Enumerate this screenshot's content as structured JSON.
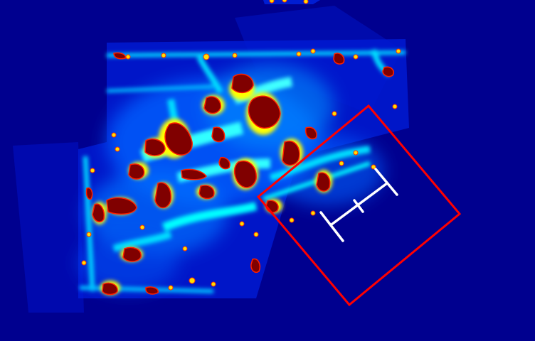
{
  "map": {
    "background_color": "#00008f",
    "colormap": "jet",
    "colormap_stops": [
      "#00008f",
      "#0000ff",
      "#00a0ff",
      "#00ffff",
      "#ffff00",
      "#ff0000",
      "#800000"
    ],
    "overlay": {
      "selection_box_color": "#ff0000",
      "robot_marker_color": "#ffffff",
      "selection_box_icon": "rotated-rectangle",
      "robot_marker_icon": "i-beam-pose-marker"
    }
  }
}
